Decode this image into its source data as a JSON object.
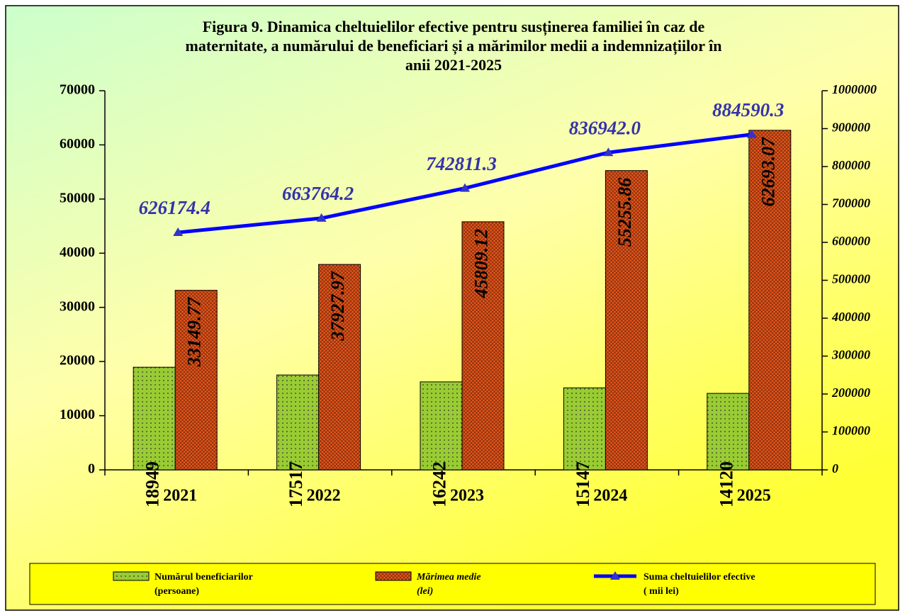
{
  "chart_data": {
    "type": "bar",
    "title": "Figura 9. Dinamica cheltuielilor efective pentru susținerea familiei în caz de\nmaternitate, a numărului de beneficiari și a mărimilor medii a indemnizațiilor în\nanii 2021-2025",
    "categories": [
      "2021",
      "2022",
      "2023",
      "2024",
      "2025"
    ],
    "series": [
      {
        "name": "Numărul beneficiarilor\n(persoane)",
        "color": "#99cc33",
        "values": [
          18949,
          17517,
          16242,
          15147,
          14120
        ]
      },
      {
        "name": "Mărimea medie\n(lei)",
        "color": "#e8571c",
        "values": [
          33149.77,
          37927.97,
          45809.12,
          55255.86,
          62693.07
        ]
      },
      {
        "name": "Suma cheltuielilor efective\n( mii lei)",
        "color": "#0000ff",
        "type": "line",
        "axis": "y2",
        "values": [
          626174.4,
          663764.2,
          742811.3,
          836942.0,
          884590.3
        ],
        "value_labels": [
          "626174.4",
          "663764.2",
          "742811.3",
          "836942.0",
          "884590.3"
        ]
      }
    ],
    "ylim": [
      0,
      70000
    ],
    "yticks": [
      0,
      10000,
      20000,
      30000,
      40000,
      50000,
      60000,
      70000
    ],
    "y2lim": [
      0,
      1000000
    ],
    "y2ticks": [
      0,
      100000,
      200000,
      300000,
      400000,
      500000,
      600000,
      700000,
      800000,
      900000,
      1000000
    ],
    "legend": "bottom"
  }
}
